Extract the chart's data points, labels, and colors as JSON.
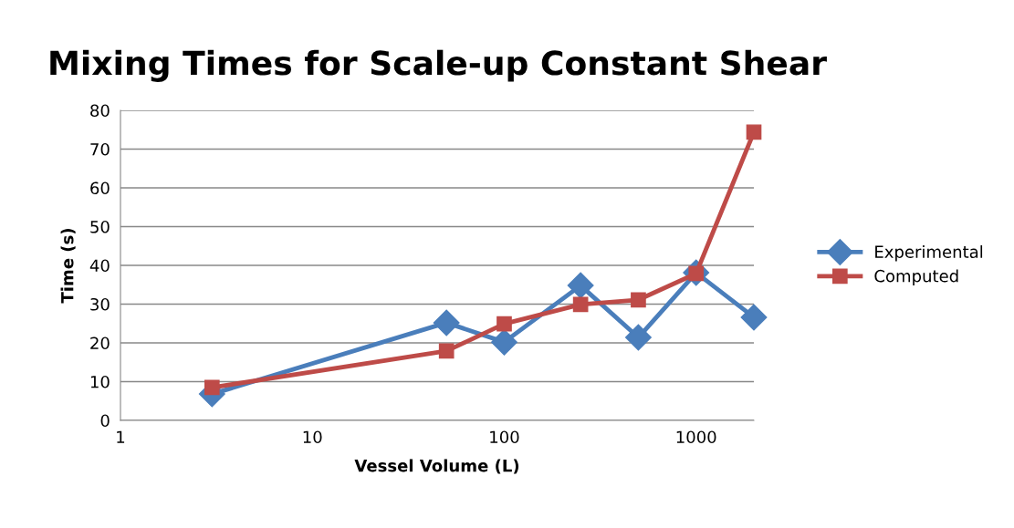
{
  "chart_data": {
    "type": "line",
    "title": "Mixing Times for Scale-up Constant Shear",
    "xlabel": "Vessel Volume (L)",
    "ylabel": "Time (s)",
    "log": "x",
    "xlim": [
      1,
      2000
    ],
    "xticks": [
      1,
      10,
      100,
      1000
    ],
    "ylim": [
      0,
      80
    ],
    "yticks": [
      0,
      10,
      20,
      30,
      40,
      50,
      60,
      70,
      80
    ],
    "grid": "y",
    "legend": "right",
    "line_style": "solid",
    "x": [
      3,
      50,
      100,
      250,
      500,
      1000,
      2000
    ],
    "series": [
      {
        "name": "Experimental",
        "color": "#4a7ebb",
        "marker": "diamond",
        "values": [
          6.8,
          25.2,
          20.2,
          34.8,
          21.4,
          38.1,
          26.6
        ]
      },
      {
        "name": "Computed",
        "color": "#be4b48",
        "marker": "square",
        "values": [
          8.5,
          17.9,
          24.9,
          29.9,
          31.1,
          37.9,
          74.4
        ]
      }
    ]
  }
}
